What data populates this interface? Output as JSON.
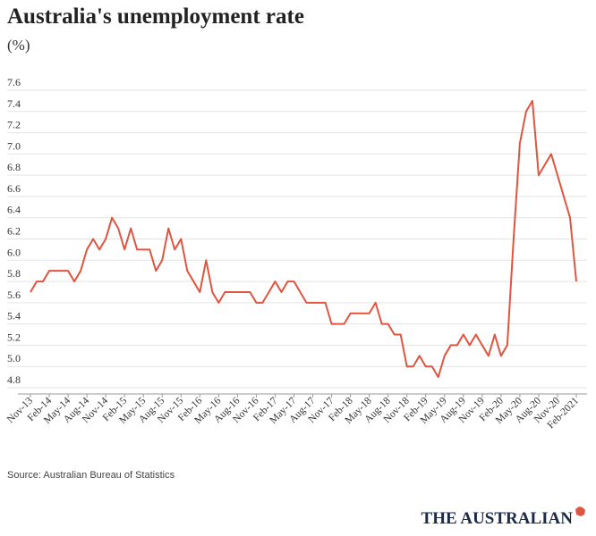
{
  "chart_data": {
    "type": "line",
    "title": "Australia's unemployment rate",
    "subtitle": "(%)",
    "source": "Source: Australian Bureau of Statistics",
    "logo": "THE AUSTRALIAN",
    "categories": [
      "Nov-13",
      null,
      null,
      "Feb-14",
      null,
      null,
      "May-14",
      null,
      null,
      "Aug-14",
      null,
      null,
      "Nov-14",
      null,
      null,
      "Feb-15",
      null,
      null,
      "May-15",
      null,
      null,
      "Aug-15",
      null,
      null,
      "Nov-15",
      null,
      null,
      "Feb-16",
      null,
      null,
      "May-16",
      null,
      null,
      "Aug-16",
      null,
      null,
      "Nov-16",
      null,
      null,
      "Feb-17",
      null,
      null,
      "May-17",
      null,
      null,
      "Aug-17",
      null,
      null,
      "Nov-17",
      null,
      null,
      "Feb-18",
      null,
      null,
      "May-18",
      null,
      null,
      "Aug-18",
      null,
      null,
      "Nov-18",
      null,
      null,
      "Feb-19",
      null,
      null,
      "May-19",
      null,
      null,
      "Aug-19",
      null,
      null,
      "Nov-19",
      null,
      null,
      "Feb-20",
      null,
      null,
      "May-20",
      null,
      null,
      "Aug-20",
      null,
      null,
      "Nov-20",
      null,
      null,
      "Feb-2021"
    ],
    "series": [
      {
        "name": "Unemployment rate",
        "color": "#e0553f",
        "values": [
          5.7,
          5.8,
          5.8,
          5.9,
          5.9,
          5.9,
          5.9,
          5.8,
          5.9,
          6.1,
          6.2,
          6.1,
          6.2,
          6.4,
          6.3,
          6.1,
          6.3,
          6.1,
          6.1,
          6.1,
          5.9,
          6.0,
          6.3,
          6.1,
          6.2,
          5.9,
          5.8,
          5.7,
          6.0,
          5.7,
          5.6,
          5.7,
          5.7,
          5.7,
          5.7,
          5.7,
          5.6,
          5.6,
          5.7,
          5.8,
          5.7,
          5.8,
          5.8,
          5.7,
          5.6,
          5.6,
          5.6,
          5.6,
          5.4,
          5.4,
          5.4,
          5.5,
          5.5,
          5.5,
          5.5,
          5.6,
          5.4,
          5.4,
          5.3,
          5.3,
          5.0,
          5.0,
          5.1,
          5.0,
          5.0,
          4.9,
          5.1,
          5.2,
          5.2,
          5.3,
          5.2,
          5.3,
          5.2,
          5.1,
          5.3,
          5.1,
          5.2,
          6.2,
          7.1,
          7.4,
          7.5,
          6.8,
          6.9,
          7.0,
          6.8,
          6.6,
          6.4,
          5.8
        ]
      }
    ],
    "ylim": [
      4.8,
      7.6
    ],
    "yticks": [
      4.8,
      {
        "value": 5,
        "label": "5.0"
      },
      5.2,
      5.4,
      5.6,
      5.8,
      {
        "value": 6,
        "label": "6.0"
      },
      6.2,
      6.4,
      6.6,
      6.8,
      {
        "value": 7,
        "label": "7.0"
      },
      7.2,
      7.4,
      7.6
    ],
    "grid": true
  }
}
